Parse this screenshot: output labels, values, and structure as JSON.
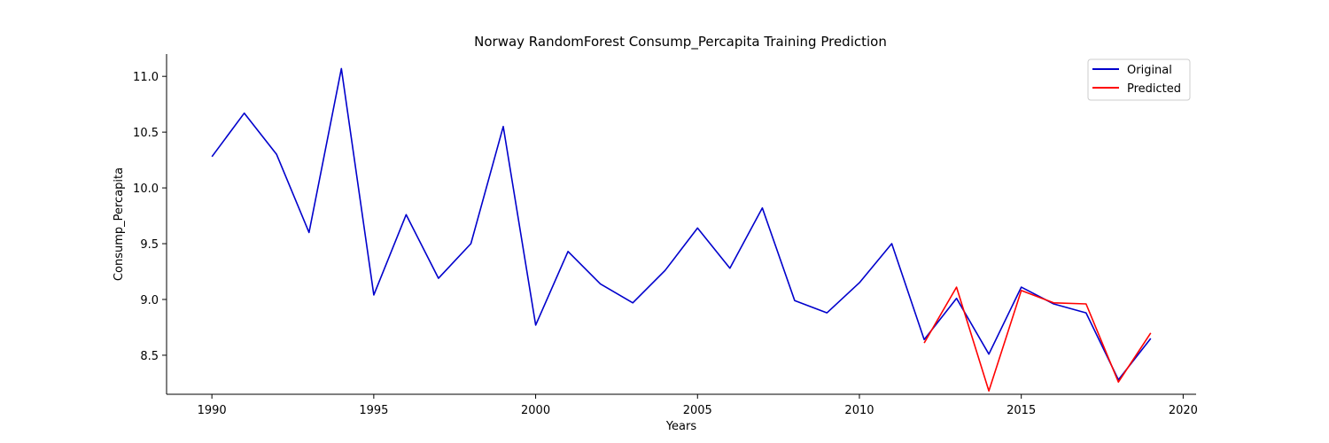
{
  "chart_data": {
    "type": "line",
    "title": "Norway RandomForest Consump_Percapita Training Prediction",
    "xlabel": "Years",
    "ylabel": "Consump_Percapita",
    "xlim": [
      1988.6,
      2020.4
    ],
    "ylim": [
      8.15,
      11.2
    ],
    "xticks": [
      1990,
      1995,
      2000,
      2005,
      2010,
      2015,
      2020
    ],
    "yticks": [
      8.5,
      9.0,
      9.5,
      10.0,
      10.5,
      11.0
    ],
    "ytick_labels": [
      "8.5",
      "9.0",
      "9.5",
      "10.0",
      "10.5",
      "11.0"
    ],
    "grid": false,
    "legend_position": "top-right",
    "series": [
      {
        "name": "Original",
        "color": "#0000cc",
        "x": [
          1990,
          1991,
          1992,
          1993,
          1994,
          1995,
          1996,
          1997,
          1998,
          1999,
          2000,
          2001,
          2002,
          2003,
          2004,
          2005,
          2006,
          2007,
          2008,
          2009,
          2010,
          2011,
          2012,
          2013,
          2014,
          2015,
          2016,
          2017,
          2018,
          2019
        ],
        "values": [
          10.28,
          10.67,
          10.3,
          9.6,
          11.07,
          9.04,
          9.76,
          9.19,
          9.5,
          10.55,
          8.77,
          9.43,
          9.14,
          8.97,
          9.26,
          9.64,
          9.28,
          9.82,
          8.99,
          8.88,
          9.15,
          9.5,
          8.64,
          9.01,
          8.51,
          9.11,
          8.96,
          8.88,
          8.28,
          8.65
        ]
      },
      {
        "name": "Predicted",
        "color": "#ff0000",
        "x": [
          2012,
          2013,
          2014,
          2015,
          2016,
          2017,
          2018,
          2019
        ],
        "values": [
          8.61,
          9.11,
          8.18,
          9.08,
          8.97,
          8.96,
          8.26,
          8.7
        ]
      }
    ]
  }
}
